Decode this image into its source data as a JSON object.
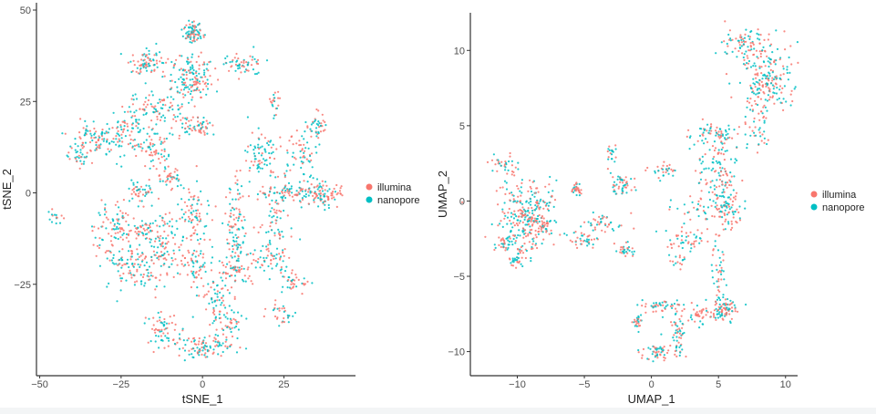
{
  "colors": {
    "illumina": "#F8766D",
    "nanopore": "#00BFC4"
  },
  "chart_data": [
    {
      "type": "scatter",
      "xlabel": "tSNE_1",
      "ylabel": "tSNE_2",
      "xlim": [
        -51,
        47
      ],
      "ylim": [
        -50,
        52
      ],
      "xticks": [
        -50,
        -25,
        0,
        25
      ],
      "yticks": [
        -25,
        0,
        25,
        50
      ],
      "xtick_labels": [
        "-50",
        "-25",
        "0",
        "25"
      ],
      "ytick_labels": [
        "-25",
        "0",
        "25",
        "50"
      ],
      "grid": false,
      "legend": {
        "placement": "right",
        "entries": [
          "illumina",
          "nanopore"
        ]
      },
      "series": [
        {
          "name": "illumina"
        },
        {
          "name": "nanopore"
        }
      ],
      "clusters": [
        {
          "x": -3,
          "y": 44,
          "sx": 2,
          "sy": 2,
          "n": 80
        },
        {
          "x": -3,
          "y": 31,
          "sx": 4,
          "sy": 4,
          "n": 150
        },
        {
          "x": -17,
          "y": 36,
          "sx": 3,
          "sy": 2,
          "n": 80
        },
        {
          "x": 12,
          "y": 35,
          "sx": 4,
          "sy": 2,
          "n": 60
        },
        {
          "x": -15,
          "y": 22,
          "sx": 5,
          "sy": 4,
          "n": 100
        },
        {
          "x": -33,
          "y": 15,
          "sx": 6,
          "sy": 3,
          "n": 100
        },
        {
          "x": -24,
          "y": 16,
          "sx": 3,
          "sy": 4,
          "n": 60
        },
        {
          "x": -15,
          "y": 12,
          "sx": 3,
          "sy": 3,
          "n": 60
        },
        {
          "x": -38,
          "y": 10,
          "sx": 2,
          "sy": 2,
          "n": 25
        },
        {
          "x": -2,
          "y": 18,
          "sx": 4,
          "sy": 2,
          "n": 60
        },
        {
          "x": 22,
          "y": 25,
          "sx": 1,
          "sy": 2,
          "n": 20
        },
        {
          "x": 35,
          "y": 18,
          "sx": 2,
          "sy": 3,
          "n": 40
        },
        {
          "x": 30,
          "y": 10,
          "sx": 3,
          "sy": 4,
          "n": 60
        },
        {
          "x": 18,
          "y": 10,
          "sx": 4,
          "sy": 4,
          "n": 80
        },
        {
          "x": 28,
          "y": 0,
          "sx": 8,
          "sy": 2,
          "n": 120
        },
        {
          "x": 38,
          "y": -1,
          "sx": 3,
          "sy": 2,
          "n": 60
        },
        {
          "x": -45,
          "y": -7,
          "sx": 2,
          "sy": 1.5,
          "n": 15
        },
        {
          "x": -20,
          "y": 0,
          "sx": 3,
          "sy": 2,
          "n": 50
        },
        {
          "x": -10,
          "y": 4,
          "sx": 2,
          "sy": 2,
          "n": 40
        },
        {
          "x": -27,
          "y": -10,
          "sx": 4,
          "sy": 4,
          "n": 90
        },
        {
          "x": -18,
          "y": -10,
          "sx": 2,
          "sy": 2,
          "n": 40
        },
        {
          "x": -12,
          "y": -10,
          "sx": 2,
          "sy": 4,
          "n": 40
        },
        {
          "x": -2,
          "y": -5,
          "sx": 3,
          "sy": 6,
          "n": 80
        },
        {
          "x": -22,
          "y": -20,
          "sx": 5,
          "sy": 4,
          "n": 100
        },
        {
          "x": -12,
          "y": -18,
          "sx": 4,
          "sy": 5,
          "n": 80
        },
        {
          "x": -2,
          "y": -20,
          "sx": 2,
          "sy": 4,
          "n": 50
        },
        {
          "x": 10,
          "y": -10,
          "sx": 2,
          "sy": 8,
          "n": 100
        },
        {
          "x": 22,
          "y": -10,
          "sx": 3,
          "sy": 6,
          "n": 60
        },
        {
          "x": 20,
          "y": -18,
          "sx": 4,
          "sy": 2,
          "n": 50
        },
        {
          "x": 28,
          "y": -24,
          "sx": 3,
          "sy": 2,
          "n": 40
        },
        {
          "x": 10,
          "y": -22,
          "sx": 3,
          "sy": 3,
          "n": 50
        },
        {
          "x": -12,
          "y": -37,
          "sx": 3,
          "sy": 3,
          "n": 60
        },
        {
          "x": 0,
          "y": -42,
          "sx": 6,
          "sy": 2,
          "n": 100
        },
        {
          "x": 8,
          "y": -35,
          "sx": 3,
          "sy": 3,
          "n": 50
        },
        {
          "x": 4,
          "y": -28,
          "sx": 3,
          "sy": 5,
          "n": 60
        },
        {
          "x": 24,
          "y": -33,
          "sx": 3,
          "sy": 2,
          "n": 30
        }
      ]
    },
    {
      "type": "scatter",
      "xlabel": "UMAP_1",
      "ylabel": "UMAP_2",
      "xlim": [
        -13.5,
        10.9
      ],
      "ylim": [
        -11.6,
        12.5
      ],
      "xticks": [
        -10,
        -5,
        0,
        5,
        10
      ],
      "yticks": [
        -10,
        -5,
        0,
        5,
        10
      ],
      "xtick_labels": [
        "-10",
        "-5",
        "0",
        "5",
        "10"
      ],
      "ytick_labels": [
        "-10",
        "-5",
        "0",
        "5",
        "10"
      ],
      "grid": false,
      "legend": {
        "placement": "right",
        "entries": [
          "illumina",
          "nanopore"
        ]
      },
      "series": [
        {
          "name": "illumina"
        },
        {
          "name": "nanopore"
        }
      ],
      "clusters": [
        {
          "x": 7,
          "y": 10.5,
          "sx": 1.2,
          "sy": 0.6,
          "n": 80
        },
        {
          "x": 8.5,
          "y": 8,
          "sx": 1.2,
          "sy": 1.5,
          "n": 200
        },
        {
          "x": 8,
          "y": 5,
          "sx": 0.5,
          "sy": 1,
          "n": 40
        },
        {
          "x": 4.5,
          "y": 4.5,
          "sx": 1.2,
          "sy": 0.5,
          "n": 60
        },
        {
          "x": 5,
          "y": 2,
          "sx": 1,
          "sy": 1.5,
          "n": 120
        },
        {
          "x": 4,
          "y": -0.5,
          "sx": 1.5,
          "sy": 0.5,
          "n": 60
        },
        {
          "x": 6,
          "y": -0.5,
          "sx": 0.5,
          "sy": 1,
          "n": 50
        },
        {
          "x": 3,
          "y": -2.5,
          "sx": 1.5,
          "sy": 0.5,
          "n": 50
        },
        {
          "x": 1,
          "y": 2,
          "sx": 0.7,
          "sy": 0.3,
          "n": 30
        },
        {
          "x": -11,
          "y": 2.5,
          "sx": 0.7,
          "sy": 0.4,
          "n": 30
        },
        {
          "x": -9.5,
          "y": -1,
          "sx": 1.2,
          "sy": 1.5,
          "n": 250
        },
        {
          "x": -11,
          "y": -2.8,
          "sx": 0.4,
          "sy": 0.4,
          "n": 30
        },
        {
          "x": -10,
          "y": -4,
          "sx": 0.4,
          "sy": 0.5,
          "n": 30
        },
        {
          "x": -8,
          "y": -1,
          "sx": 0.5,
          "sy": 1.2,
          "n": 60
        },
        {
          "x": -5.5,
          "y": 0.7,
          "sx": 0.3,
          "sy": 0.3,
          "n": 30
        },
        {
          "x": -5,
          "y": -2.5,
          "sx": 0.7,
          "sy": 0.4,
          "n": 40
        },
        {
          "x": -2.2,
          "y": 1,
          "sx": 0.5,
          "sy": 0.5,
          "n": 50
        },
        {
          "x": -3,
          "y": 3,
          "sx": 0.3,
          "sy": 0.5,
          "n": 20
        },
        {
          "x": -3.5,
          "y": -1.5,
          "sx": 1,
          "sy": 0.5,
          "n": 40
        },
        {
          "x": -2,
          "y": -3.2,
          "sx": 0.5,
          "sy": 0.4,
          "n": 30
        },
        {
          "x": 5,
          "y": -5,
          "sx": 0.3,
          "sy": 1.3,
          "n": 40
        },
        {
          "x": 5.5,
          "y": -7.2,
          "sx": 0.5,
          "sy": 0.5,
          "n": 80
        },
        {
          "x": 3.5,
          "y": -7.5,
          "sx": 0.7,
          "sy": 0.4,
          "n": 40
        },
        {
          "x": 1,
          "y": -7,
          "sx": 1,
          "sy": 0.3,
          "n": 50
        },
        {
          "x": -1,
          "y": -8,
          "sx": 0.3,
          "sy": 0.4,
          "n": 25
        },
        {
          "x": 0.5,
          "y": -10,
          "sx": 0.8,
          "sy": 0.4,
          "n": 50
        },
        {
          "x": 2,
          "y": -9,
          "sx": 0.3,
          "sy": 0.8,
          "n": 50
        },
        {
          "x": 2,
          "y": -3.8,
          "sx": 0.5,
          "sy": 0.5,
          "n": 20
        }
      ]
    }
  ]
}
